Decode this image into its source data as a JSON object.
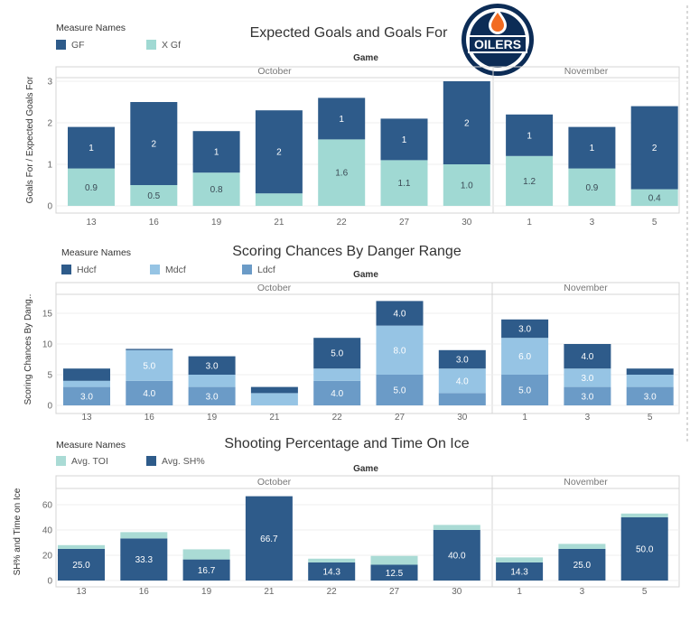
{
  "logo": {
    "text": "OILERS",
    "colors": {
      "navy": "#0c2c56",
      "orange": "#f26b21"
    }
  },
  "colors": {
    "dark": "#2e5b8a",
    "light": "#a0d9d3",
    "mid": "#96c4e4",
    "low": "#6b9bc7",
    "toi": "#aadbd5",
    "sh": "#2e5b8a"
  },
  "chart_data": [
    {
      "type": "bar",
      "stacked": true,
      "title": "Expected Goals and Goals For",
      "header": "Game",
      "ylabel": "Goals For / Expected Goals For",
      "ylim": [
        0,
        3
      ],
      "yticks": [
        0,
        1,
        2,
        3
      ],
      "legend_title": "Measure Names",
      "groups": [
        {
          "label": "October",
          "categories": [
            "13",
            "16",
            "19",
            "21",
            "22",
            "27",
            "30"
          ]
        },
        {
          "label": "November",
          "categories": [
            "1",
            "3",
            "5"
          ]
        }
      ],
      "categories": [
        "13",
        "16",
        "19",
        "21",
        "22",
        "27",
        "30",
        "1",
        "3",
        "5"
      ],
      "series": [
        {
          "name": "X Gf",
          "color": "#a0d9d3",
          "labelColor": "#3b4a55",
          "values": [
            0.9,
            0.5,
            0.8,
            0.3,
            1.6,
            1.1,
            1.0,
            1.2,
            0.9,
            0.4
          ],
          "labels": [
            "0.9",
            "0.5",
            "0.8",
            "",
            "1.6",
            "1.1",
            "1.0",
            "1.2",
            "0.9",
            "0.4"
          ]
        },
        {
          "name": "GF",
          "color": "#2e5b8a",
          "labelColor": "#ffffff",
          "values": [
            1,
            2,
            1,
            2,
            1,
            1,
            2,
            1,
            1,
            2
          ],
          "labels": [
            "1",
            "2",
            "1",
            "2",
            "1",
            "1",
            "2",
            "1",
            "1",
            "2"
          ]
        }
      ],
      "legend_order": [
        "GF",
        "X Gf"
      ]
    },
    {
      "type": "bar",
      "stacked": true,
      "title": "Scoring Chances By Danger Range",
      "header": "Game",
      "ylabel": "Scoring Chances By Dang..",
      "ylim": [
        0,
        17.5
      ],
      "yticks": [
        0,
        5,
        10,
        15
      ],
      "legend_title": "Measure Names",
      "groups": [
        {
          "label": "October",
          "categories": [
            "13",
            "16",
            "19",
            "21",
            "22",
            "27",
            "30"
          ]
        },
        {
          "label": "November",
          "categories": [
            "1",
            "3",
            "5"
          ]
        }
      ],
      "categories": [
        "13",
        "16",
        "19",
        "21",
        "22",
        "27",
        "30",
        "1",
        "3",
        "5"
      ],
      "series": [
        {
          "name": "Ldcf",
          "color": "#6b9bc7",
          "labelColor": "#ffffff",
          "values": [
            3,
            4,
            3,
            0,
            4,
            5,
            2,
            5,
            3,
            3
          ],
          "labels": [
            "3.0",
            "4.0",
            "3.0",
            "",
            "4.0",
            "5.0",
            "",
            "5.0",
            "3.0",
            "3.0"
          ]
        },
        {
          "name": "Mdcf",
          "color": "#96c4e4",
          "labelColor": "#ffffff",
          "values": [
            1,
            5,
            2,
            2,
            2,
            8,
            4,
            6,
            3,
            2
          ],
          "labels": [
            "",
            "5.0",
            "",
            "",
            "",
            "8.0",
            "4.0",
            "6.0",
            "3.0",
            ""
          ]
        },
        {
          "name": "Hdcf",
          "color": "#2e5b8a",
          "labelColor": "#ffffff",
          "values": [
            2,
            0.2,
            3,
            1,
            5,
            4,
            3,
            3,
            4,
            1
          ],
          "labels": [
            "",
            "",
            "3.0",
            "",
            "5.0",
            "4.0",
            "3.0",
            "3.0",
            "4.0",
            ""
          ]
        }
      ],
      "legend_order": [
        "Hdcf",
        "Mdcf",
        "Ldcf"
      ]
    },
    {
      "type": "bar",
      "stacked": true,
      "title": "Shooting Percentage and Time On Ice",
      "header": "Game",
      "ylabel": "SH% and Time on Ice",
      "ylim": [
        0,
        70
      ],
      "yticks": [
        0,
        20,
        40,
        60
      ],
      "legend_title": "Measure Names",
      "groups": [
        {
          "label": "October",
          "categories": [
            "13",
            "16",
            "19",
            "21",
            "22",
            "27",
            "30"
          ]
        },
        {
          "label": "November",
          "categories": [
            "1",
            "3",
            "5"
          ]
        }
      ],
      "categories": [
        "13",
        "16",
        "19",
        "21",
        "22",
        "27",
        "30",
        "1",
        "3",
        "5"
      ],
      "series": [
        {
          "name": "Avg. SH%",
          "color": "#2e5b8a",
          "labelColor": "#ffffff",
          "values": [
            25.0,
            33.3,
            16.7,
            66.7,
            14.3,
            12.5,
            40.0,
            14.3,
            25.0,
            50.0
          ],
          "labels": [
            "25.0",
            "33.3",
            "16.7",
            "66.7",
            "14.3",
            "12.5",
            "40.0",
            "14.3",
            "25.0",
            "50.0"
          ]
        },
        {
          "name": "Avg. TOI",
          "color": "#aadbd5",
          "labelColor": "#333333",
          "values": [
            3,
            5,
            8,
            0,
            3,
            7,
            4,
            4,
            4,
            3
          ],
          "labels": [
            "",
            "",
            "",
            "",
            "",
            "",
            "",
            "",
            "",
            ""
          ]
        }
      ],
      "legend_order": [
        "Avg. TOI",
        "Avg. SH%"
      ]
    }
  ]
}
